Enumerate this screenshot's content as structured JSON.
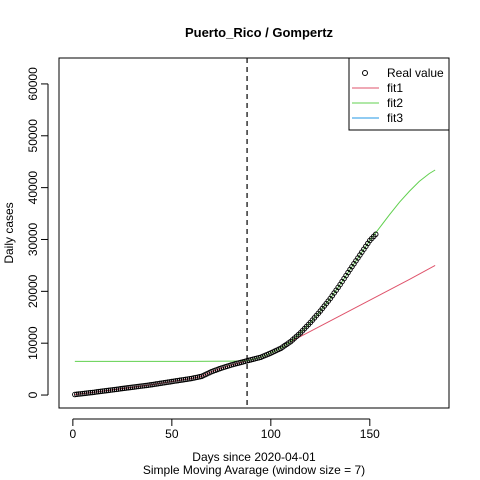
{
  "chart_data": {
    "type": "line",
    "title": "Puerto_Rico / Gompertz",
    "xlabel": "Days since 2020-04-01",
    "subtitle": "Simple Moving Avarage (window size = 7)",
    "ylabel": "Daily cases",
    "xlim": [
      -7,
      190
    ],
    "ylim": [
      -2500,
      65000
    ],
    "x_ticks": [
      0,
      50,
      100,
      150
    ],
    "y_ticks": [
      0,
      10000,
      20000,
      30000,
      40000,
      50000,
      60000
    ],
    "vline": 88,
    "legend_position": "top-right",
    "colors": {
      "real": "#000000",
      "fit1": "#DF536B",
      "fit2": "#61D04F",
      "fit3": "#2297E6"
    },
    "real_value": {
      "name": "Real value",
      "x": [
        1,
        10,
        20,
        30,
        40,
        50,
        60,
        65,
        70,
        75,
        80,
        85,
        88,
        95,
        100,
        105,
        110,
        115,
        120,
        125,
        130,
        135,
        140,
        145,
        150,
        153
      ],
      "y": [
        100,
        500,
        1000,
        1500,
        2000,
        2600,
        3200,
        3600,
        4500,
        5200,
        5800,
        6300,
        6600,
        7300,
        8100,
        9000,
        10300,
        12000,
        14000,
        16200,
        18600,
        21300,
        24200,
        27000,
        29800,
        31000
      ]
    },
    "series": [
      {
        "name": "fit1",
        "x": [
          1,
          10,
          20,
          30,
          40,
          50,
          60,
          65,
          70,
          75,
          80,
          85,
          88,
          95,
          100,
          105,
          110,
          115,
          120,
          130,
          140,
          150,
          160,
          170,
          183
        ],
        "y": [
          100,
          500,
          1000,
          1500,
          2000,
          2600,
          3200,
          3600,
          4500,
          5200,
          5800,
          6300,
          6600,
          7300,
          8100,
          9000,
          10300,
          11300,
          12300,
          14300,
          16300,
          18300,
          20300,
          22300,
          25000
        ]
      },
      {
        "name": "fit2",
        "x": [
          1,
          20,
          40,
          60,
          80,
          88,
          95,
          100,
          105,
          110,
          115,
          120,
          125,
          130,
          135,
          140,
          145,
          150,
          155,
          160,
          165,
          170,
          175,
          180,
          183
        ],
        "y": [
          6500,
          6500,
          6500,
          6500,
          6550,
          6600,
          7300,
          8100,
          9000,
          10300,
          12000,
          14000,
          16200,
          18600,
          21300,
          24200,
          27000,
          29800,
          32300,
          34800,
          37200,
          39300,
          41200,
          42700,
          43400
        ]
      },
      {
        "name": "fit3",
        "x": [],
        "y": []
      }
    ]
  }
}
